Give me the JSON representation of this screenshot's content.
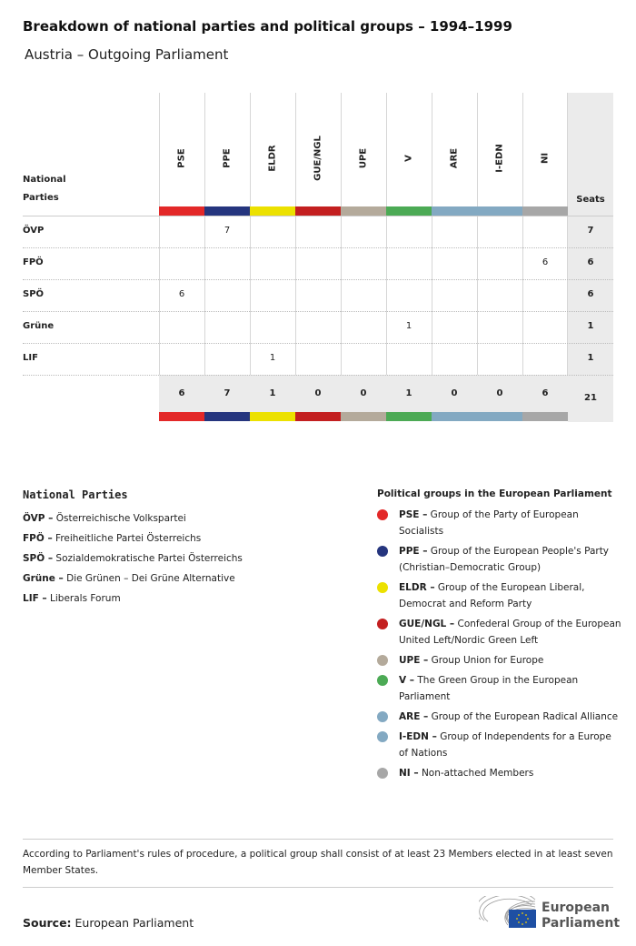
{
  "title": "Breakdown of national parties and political groups – 1994–1999",
  "subtitle": "Austria – Outgoing Parliament",
  "table": {
    "row_header": "National Parties",
    "seats_header": "Seats",
    "groups": [
      {
        "code": "PSE",
        "color": "#e32828"
      },
      {
        "code": "PPE",
        "color": "#25357e"
      },
      {
        "code": "ELDR",
        "color": "#ece100"
      },
      {
        "code": "GUE/NGL",
        "color": "#c31f20"
      },
      {
        "code": "UPE",
        "color": "#b4aa9b"
      },
      {
        "code": "V",
        "color": "#4caa55"
      },
      {
        "code": "ARE",
        "color": "#83a9c2"
      },
      {
        "code": "I-EDN",
        "color": "#83a9c2"
      },
      {
        "code": "NI",
        "color": "#a7a7a7"
      }
    ],
    "rows": [
      {
        "party": "ÖVP",
        "values": [
          "",
          "7",
          "",
          "",
          "",
          "",
          "",
          "",
          ""
        ],
        "seats": "7"
      },
      {
        "party": "FPÖ",
        "values": [
          "",
          "",
          "",
          "",
          "",
          "",
          "",
          "",
          "6"
        ],
        "seats": "6"
      },
      {
        "party": "SPÖ",
        "values": [
          "6",
          "",
          "",
          "",
          "",
          "",
          "",
          "",
          ""
        ],
        "seats": "6"
      },
      {
        "party": "Grüne",
        "values": [
          "",
          "",
          "",
          "",
          "",
          "1",
          "",
          "",
          ""
        ],
        "seats": "1"
      },
      {
        "party": "LIF",
        "values": [
          "",
          "",
          "1",
          "",
          "",
          "",
          "",
          "",
          ""
        ],
        "seats": "1"
      }
    ],
    "totals": [
      "6",
      "7",
      "1",
      "0",
      "0",
      "1",
      "0",
      "0",
      "6"
    ],
    "total_seats": "21"
  },
  "national_parties": {
    "heading": "National Parties",
    "items": [
      {
        "abbr": "ÖVP –",
        "name": " Österreichische Volkspartei"
      },
      {
        "abbr": "FPÖ –",
        "name": " Freiheitliche Partei Österreichs"
      },
      {
        "abbr": "SPÖ –",
        "name": " Sozialdemokratische Partei Österreichs"
      },
      {
        "abbr": "Grüne –",
        "name": " Die Grünen – Dei Grüne Alternative"
      },
      {
        "abbr": "LIF –",
        "name": " Liberals Forum"
      }
    ]
  },
  "political_groups": {
    "heading": "Political groups in the European Parliament",
    "items": [
      {
        "abbr": "PSE –",
        "name": " Group of the Party of European Socialists",
        "color": "#e32828"
      },
      {
        "abbr": "PPE –",
        "name": " Group of the European People's Party (Christian–Democratic Group)",
        "color": "#25357e"
      },
      {
        "abbr": "ELDR –",
        "name": " Group of the European Liberal, Democrat and Reform Party",
        "color": "#ece100"
      },
      {
        "abbr": "GUE/NGL –",
        "name": " Confederal Group of the European United Left/Nordic Green Left",
        "color": "#c31f20"
      },
      {
        "abbr": "UPE –",
        "name": " Group Union for Europe",
        "color": "#b4aa9b"
      },
      {
        "abbr": "V –",
        "name": " The Green Group in the European Parliament",
        "color": "#4caa55"
      },
      {
        "abbr": "ARE –",
        "name": " Group of the European Radical Alliance",
        "color": "#83a9c2"
      },
      {
        "abbr": "I-EDN –",
        "name": " Group of Independents for a Europe of Nations",
        "color": "#83a9c2"
      },
      {
        "abbr": "NI –",
        "name": " Non-attached Members",
        "color": "#a7a7a7"
      }
    ]
  },
  "note": "According to Parliament's rules of procedure, a political group shall consist of at least 23 Members elected in at least seven Member States.",
  "source": {
    "label": "Source:",
    "value": " European Parliament"
  },
  "logo": {
    "line1": "European",
    "line2": "Parliament",
    "flag_color": "#1e4fa3"
  }
}
